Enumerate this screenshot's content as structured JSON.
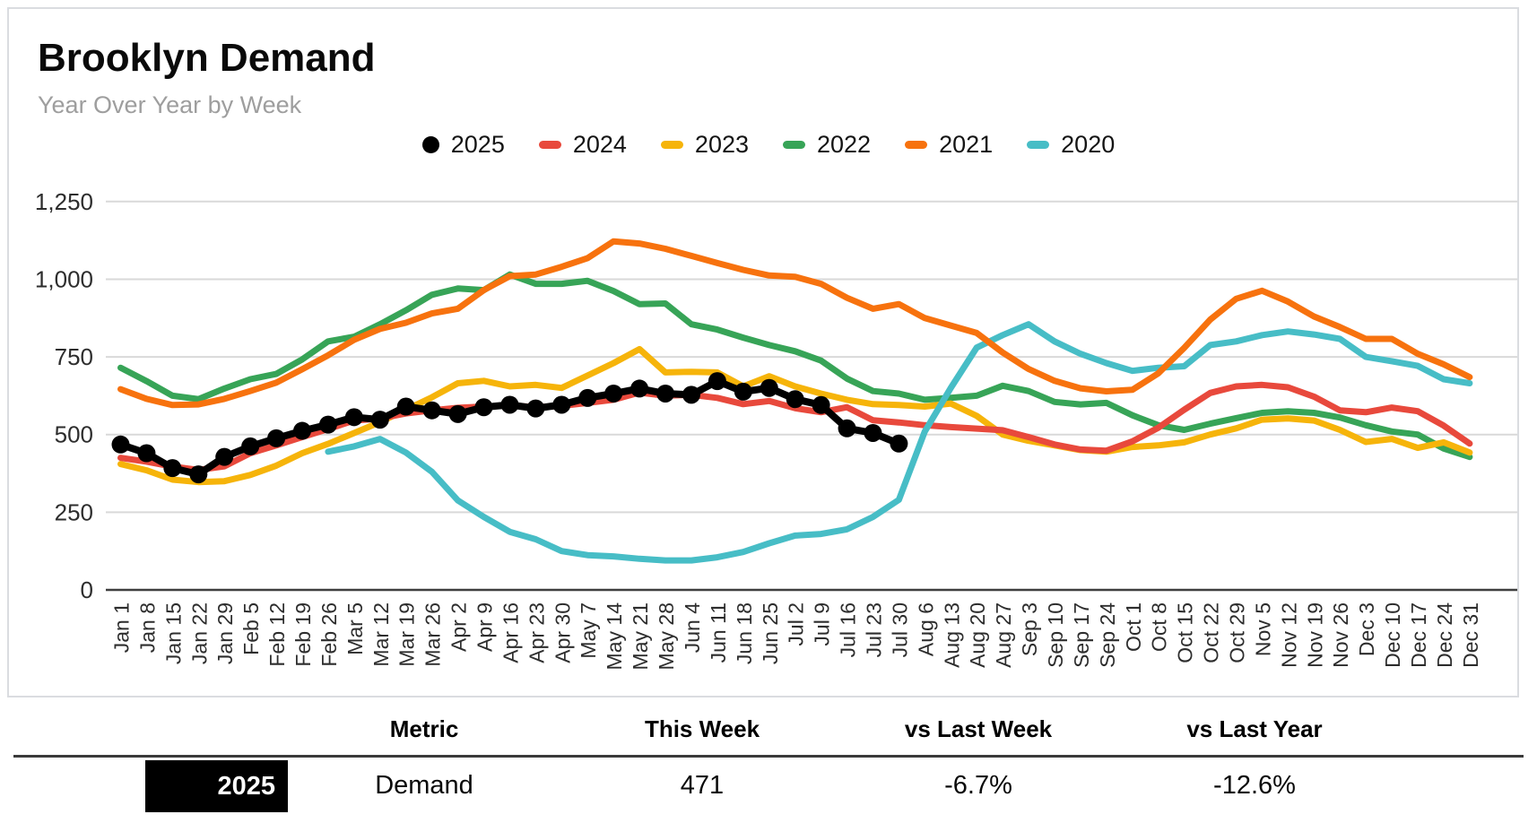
{
  "card": {
    "title": "Brooklyn Demand",
    "subtitle": "Year Over Year by Week"
  },
  "legend": {
    "position": "top",
    "items": [
      {
        "label": "2025",
        "color": "#000000",
        "marker": "circle"
      },
      {
        "label": "2024",
        "color": "#e8493c",
        "marker": "dash"
      },
      {
        "label": "2023",
        "color": "#f6b40a",
        "marker": "dash"
      },
      {
        "label": "2022",
        "color": "#37a457",
        "marker": "dash"
      },
      {
        "label": "2021",
        "color": "#f7720e",
        "marker": "dash"
      },
      {
        "label": "2020",
        "color": "#47bdc6",
        "marker": "dash"
      }
    ]
  },
  "chart_data": {
    "type": "line",
    "title": "Brooklyn Demand",
    "xlabel": "",
    "ylabel": "",
    "ylim": [
      0,
      1250
    ],
    "grid": "horizontal",
    "grid_color": "#d9d9d9",
    "axis_color": "#3f3f3f",
    "tick_label_color": "#2d2d2d",
    "y_ticks": [
      {
        "v": 0,
        "label": "0"
      },
      {
        "v": 250,
        "label": "250"
      },
      {
        "v": 500,
        "label": "500"
      },
      {
        "v": 750,
        "label": "750"
      },
      {
        "v": 1000,
        "label": "1,000"
      },
      {
        "v": 1250,
        "label": "1,250"
      }
    ],
    "x_labels": [
      "Jan 1",
      "Jan 8",
      "Jan 15",
      "Jan 22",
      "Jan 29",
      "Feb 5",
      "Feb 12",
      "Feb 19",
      "Feb 26",
      "Mar 5",
      "Mar 12",
      "Mar 19",
      "Mar 26",
      "Apr 2",
      "Apr 9",
      "Apr 16",
      "Apr 23",
      "Apr 30",
      "May 7",
      "May 14",
      "May 21",
      "May 28",
      "Jun 4",
      "Jun 11",
      "Jun 18",
      "Jun 25",
      "Jul 2",
      "Jul 9",
      "Jul 16",
      "Jul 23",
      "Jul 30",
      "Aug 6",
      "Aug 13",
      "Aug 20",
      "Aug 27",
      "Sep 3",
      "Sep 10",
      "Sep 17",
      "Sep 24",
      "Oct 1",
      "Oct 8",
      "Oct 15",
      "Oct 22",
      "Oct 29",
      "Nov 5",
      "Nov 12",
      "Nov 19",
      "Nov 26",
      "Dec 3",
      "Dec 10",
      "Dec 17",
      "Dec 24",
      "Dec 31"
    ],
    "series": [
      {
        "name": "2022",
        "color": "#37a457",
        "marker": "none",
        "line_width": 7,
        "values": [
          715,
          672,
          625,
          614,
          648,
          678,
          695,
          742,
          800,
          815,
          855,
          900,
          950,
          970,
          965,
          1015,
          985,
          985,
          995,
          962,
          920,
          922,
          855,
          838,
          812,
          788,
          768,
          738,
          680,
          640,
          632,
          612,
          618,
          625,
          657,
          640,
          605,
          597,
          602,
          562,
          530,
          515,
          535,
          553,
          570,
          575,
          570,
          555,
          530,
          510,
          500,
          455,
          428
        ]
      },
      {
        "name": "2023",
        "color": "#f6b40a",
        "marker": "none",
        "line_width": 7,
        "values": [
          405,
          385,
          355,
          347,
          350,
          370,
          400,
          440,
          470,
          505,
          540,
          580,
          620,
          665,
          673,
          655,
          660,
          650,
          690,
          730,
          775,
          700,
          702,
          700,
          655,
          688,
          655,
          632,
          612,
          598,
          595,
          590,
          600,
          560,
          500,
          480,
          465,
          450,
          445,
          460,
          465,
          475,
          500,
          520,
          548,
          552,
          545,
          515,
          476,
          486,
          457,
          475,
          442
        ]
      },
      {
        "name": "2024",
        "color": "#e8493c",
        "marker": "none",
        "line_width": 7,
        "values": [
          425,
          413,
          397,
          386,
          398,
          440,
          465,
          492,
          518,
          545,
          552,
          568,
          578,
          586,
          590,
          594,
          588,
          592,
          602,
          612,
          635,
          625,
          628,
          618,
          598,
          608,
          585,
          572,
          588,
          546,
          539,
          530,
          524,
          519,
          514,
          492,
          468,
          452,
          448,
          478,
          522,
          580,
          634,
          655,
          660,
          652,
          622,
          578,
          572,
          587,
          575,
          529,
          471
        ]
      },
      {
        "name": "2020",
        "color": "#47bdc6",
        "marker": "none",
        "line_width": 7,
        "values": [
          null,
          null,
          null,
          null,
          null,
          null,
          null,
          null,
          445,
          462,
          486,
          442,
          380,
          288,
          235,
          187,
          163,
          125,
          112,
          108,
          100,
          95,
          95,
          105,
          122,
          150,
          175,
          180,
          195,
          235,
          290,
          510,
          650,
          780,
          820,
          855,
          800,
          760,
          730,
          705,
          715,
          720,
          788,
          800,
          820,
          832,
          822,
          808,
          750,
          736,
          721,
          678,
          665
        ]
      },
      {
        "name": "2021",
        "color": "#f7720e",
        "marker": "none",
        "line_width": 7,
        "values": [
          646,
          615,
          595,
          597,
          615,
          640,
          667,
          710,
          755,
          805,
          840,
          860,
          890,
          905,
          965,
          1010,
          1015,
          1040,
          1068,
          1122,
          1115,
          1098,
          1075,
          1052,
          1030,
          1012,
          1008,
          985,
          940,
          905,
          920,
          875,
          851,
          827,
          764,
          711,
          673,
          649,
          639,
          644,
          697,
          779,
          870,
          937,
          963,
          928,
          880,
          846,
          808,
          808,
          760,
          726,
          685
        ]
      },
      {
        "name": "2025",
        "color": "#000000",
        "marker": "circle",
        "line_width": 8,
        "values": [
          468,
          440,
          392,
          372,
          428,
          462,
          488,
          512,
          532,
          556,
          548,
          590,
          578,
          566,
          588,
          596,
          584,
          596,
          618,
          632,
          648,
          632,
          628,
          672,
          638,
          650,
          614,
          595,
          520,
          505,
          471,
          null,
          null,
          null,
          null,
          null,
          null,
          null,
          null,
          null,
          null,
          null,
          null,
          null,
          null,
          null,
          null,
          null,
          null,
          null,
          null,
          null,
          null
        ]
      }
    ]
  },
  "table": {
    "columns": [
      "Metric",
      "This Week",
      "vs Last Week",
      "vs Last Year"
    ],
    "rows": [
      {
        "year": "2025",
        "year_bg": "#000000",
        "metric": "Demand",
        "this_week": "471",
        "vs_last_week": "-6.7%",
        "vs_last_year": "-12.6%"
      }
    ]
  }
}
